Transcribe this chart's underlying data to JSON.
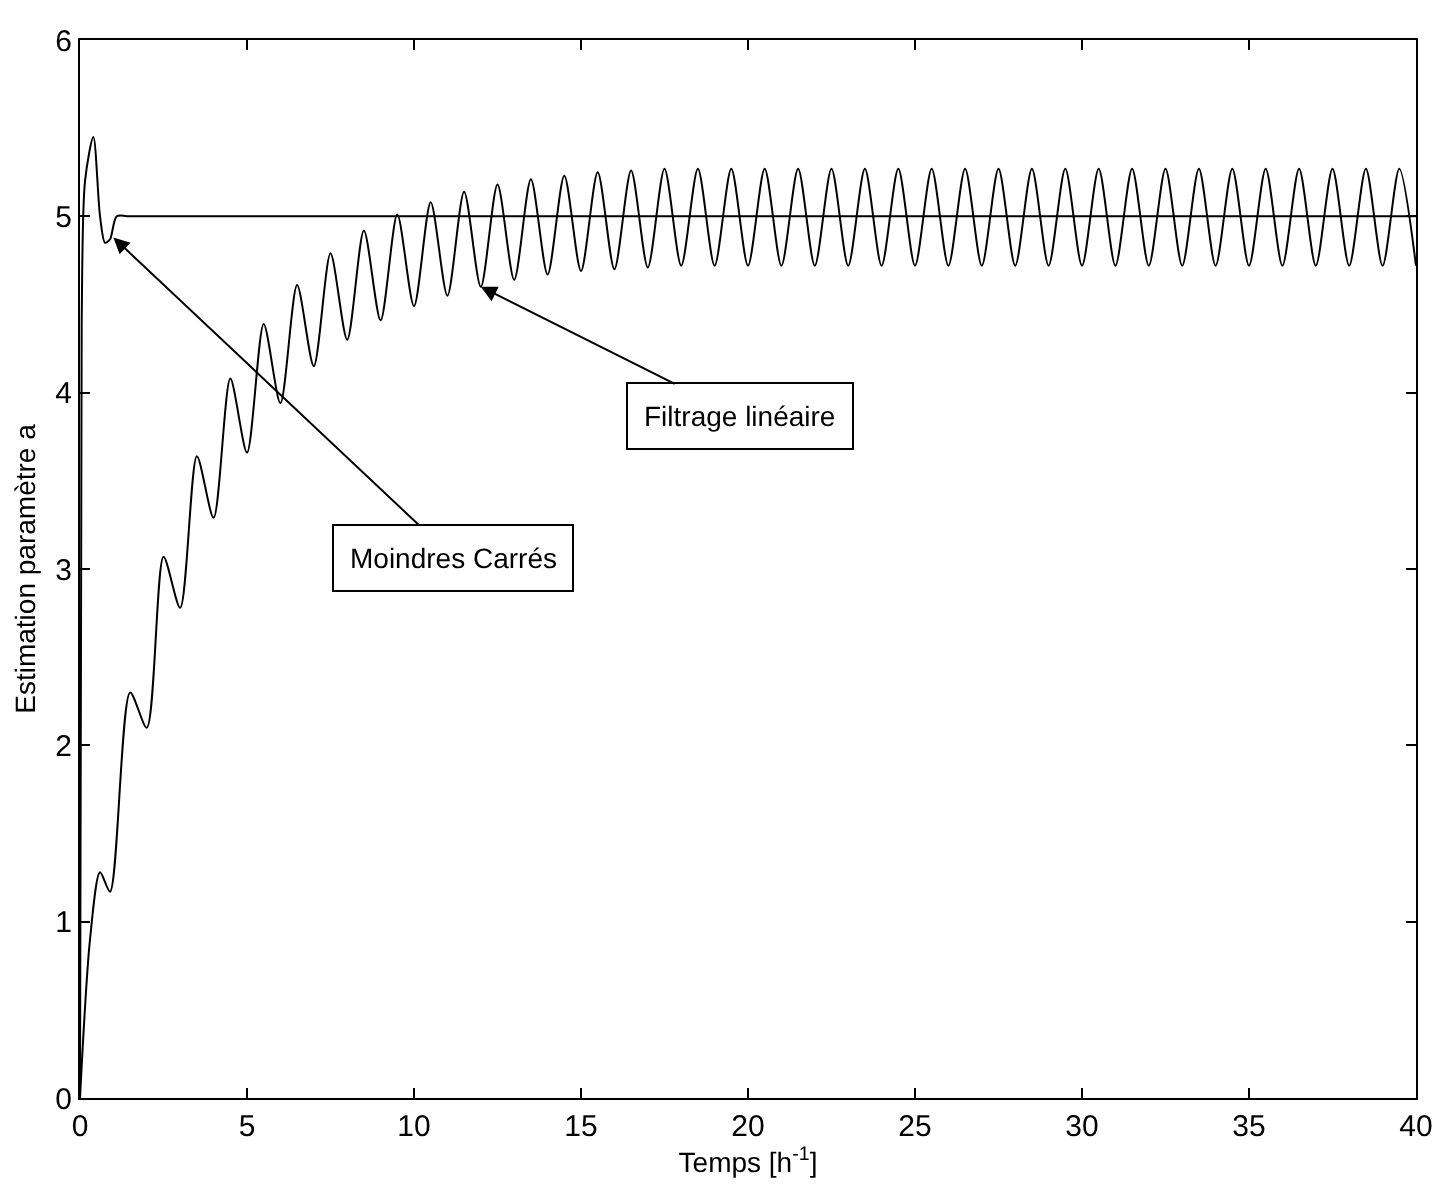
{
  "chart_data": {
    "type": "line",
    "xlabel": "Temps [h$^{-1}$]",
    "ylabel": "Estimation paramètre a",
    "xlim": [
      0,
      40
    ],
    "ylim": [
      0,
      6
    ],
    "xticks": [
      0,
      5,
      10,
      15,
      20,
      25,
      30,
      35,
      40
    ],
    "yticks": [
      0,
      1,
      2,
      3,
      4,
      5,
      6
    ],
    "marker": "none",
    "line_style": "solid",
    "annotations": [
      {
        "text": "Moindres Carrés",
        "x": 1.0,
        "y": 4.88
      },
      {
        "text": "Filtrage linéaire",
        "x": 12.0,
        "y": 4.6
      }
    ],
    "series": [
      {
        "color": "#000000",
        "x": [
          0,
          0.05,
          0.15,
          0.4,
          0.6,
          0.75,
          0.9,
          1.1,
          1.5,
          40
        ],
        "values": [
          0,
          4.4,
          5.2,
          5.45,
          5.0,
          4.85,
          4.87,
          5.0,
          5.0,
          5.0
        ]
      },
      {
        "color": "#000000",
        "x": [
          0,
          0.3,
          0.6,
          0.9,
          1.5,
          2,
          2.5,
          3,
          3.5,
          4,
          4.5,
          5,
          5.5,
          6,
          6.5,
          7,
          7.5,
          8,
          8.5,
          9,
          9.5,
          10,
          10.5,
          11,
          11.5,
          12,
          12.5,
          13,
          13.5,
          14,
          14.5,
          15,
          15.5,
          16,
          16.5,
          17,
          17.5,
          18,
          18.5,
          19,
          19.5,
          20,
          20.5,
          21,
          21.5,
          22,
          22.5,
          23,
          23.5,
          24,
          24.5,
          25,
          25.5,
          26,
          26.5,
          27,
          27.5,
          28,
          28.5,
          29,
          29.5,
          30,
          30.5,
          31,
          31.5,
          32,
          32.5,
          33,
          33.5,
          34,
          34.5,
          35,
          35.5,
          36,
          36.5,
          37,
          37.5,
          38,
          38.5,
          39,
          39.5,
          40
        ],
        "values": [
          0,
          0.9,
          1.28,
          1.17,
          2.3,
          2.1,
          3.07,
          2.78,
          3.64,
          3.29,
          4.08,
          3.66,
          4.39,
          3.94,
          4.61,
          4.15,
          4.79,
          4.3,
          4.92,
          4.41,
          5.01,
          4.49,
          5.08,
          4.55,
          5.14,
          4.6,
          5.18,
          4.64,
          5.21,
          4.67,
          5.23,
          4.69,
          5.25,
          4.7,
          5.26,
          4.71,
          5.27,
          4.72,
          5.27,
          4.72,
          5.27,
          4.72,
          5.27,
          4.72,
          5.27,
          4.72,
          5.27,
          4.72,
          5.27,
          4.72,
          5.27,
          4.72,
          5.27,
          4.72,
          5.27,
          4.72,
          5.27,
          4.72,
          5.27,
          4.72,
          5.27,
          4.72,
          5.27,
          4.72,
          5.27,
          4.72,
          5.27,
          4.72,
          5.27,
          4.72,
          5.27,
          4.72,
          5.27,
          4.72,
          5.27,
          4.72,
          5.27,
          4.72,
          5.27,
          4.72,
          5.27,
          4.72
        ]
      }
    ]
  }
}
